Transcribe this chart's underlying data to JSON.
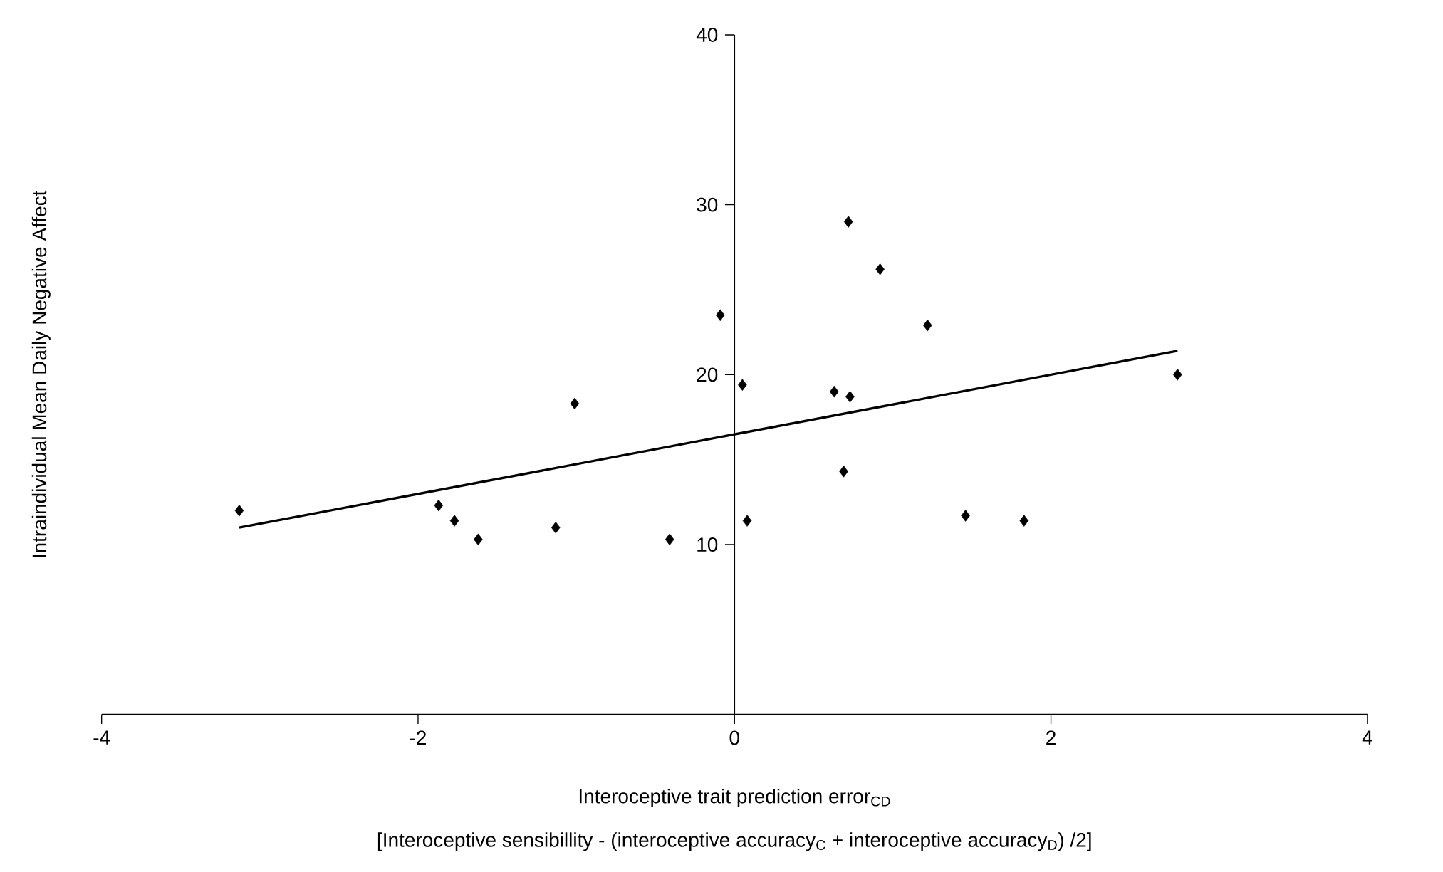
{
  "chart_data": {
    "type": "scatter",
    "xlabel": "Interoceptive trait prediction error$_{CD}$",
    "ylabel": "Intraindividual Mean Daily Negative Affect",
    "annotations": [
      "[Interoceptive sensibillity - (interoceptive accuracy$_{C}$ + interoceptive accuracy$_{D}$) /2]"
    ],
    "xlim": [
      -4,
      4
    ],
    "xticks": [
      -4,
      -2,
      0,
      2,
      4
    ],
    "ylim": [
      0,
      40
    ],
    "yticks": [
      10,
      20,
      30,
      40
    ],
    "marker": "diamond",
    "series": [
      {
        "color": "#000000",
        "x": [
          -3.13,
          -1.87,
          -1.77,
          -1.62,
          -1.13,
          -1.01,
          -0.41,
          -0.09,
          0.05,
          0.08,
          0.63,
          0.72,
          0.73,
          0.69,
          0.92,
          1.22,
          1.46,
          1.83,
          2.8
        ],
        "values": [
          12.0,
          12.3,
          11.4,
          10.3,
          11.0,
          18.3,
          10.3,
          23.5,
          19.4,
          11.4,
          19.0,
          29.0,
          18.7,
          14.3,
          26.2,
          22.9,
          11.7,
          11.4,
          20.0
        ]
      },
      {
        "type": "line",
        "marker": "none",
        "color": "#000000",
        "x": [
          -3.13,
          2.8
        ],
        "values": [
          11.0,
          21.4
        ]
      }
    ]
  }
}
